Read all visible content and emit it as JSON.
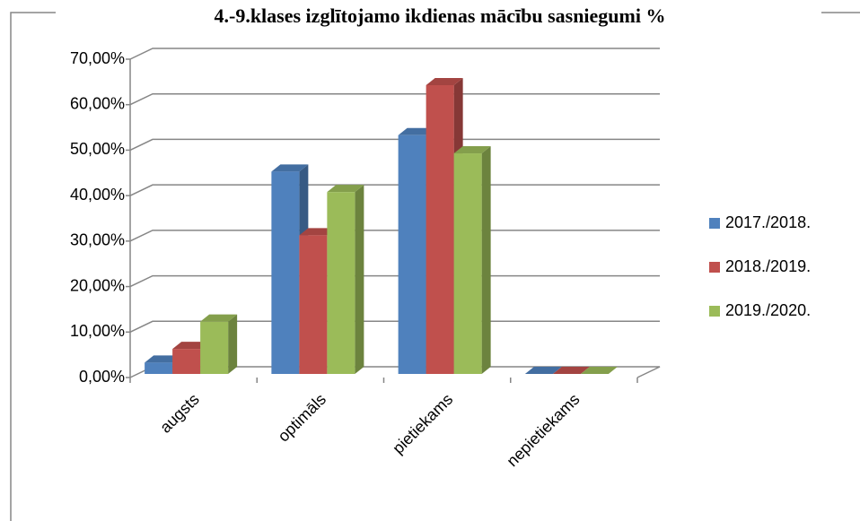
{
  "chart_data": {
    "type": "bar3d",
    "title": "4.-9.klases izglītojamo ikdienas mācību sasniegumi %",
    "categories": [
      "augsts",
      "optimāls",
      "pietiekams",
      "nepietiekams"
    ],
    "series": [
      {
        "name": "2017./2018.",
        "color": "#4f81bd",
        "values": [
          2.5,
          44.5,
          52.5,
          0
        ]
      },
      {
        "name": "2018./2019.",
        "color": "#c0504d",
        "values": [
          5.5,
          30.5,
          63.5,
          0
        ]
      },
      {
        "name": "2019./2020.",
        "color": "#9bbb59",
        "values": [
          11.5,
          40,
          48.5,
          0
        ]
      }
    ],
    "ylim": [
      0,
      70
    ],
    "yticks": [
      {
        "value": 0,
        "label": "0,00%"
      },
      {
        "value": 10,
        "label": "10,00%"
      },
      {
        "value": 20,
        "label": "20,00%"
      },
      {
        "value": 30,
        "label": "30,00%"
      },
      {
        "value": 40,
        "label": "40,00%"
      },
      {
        "value": 50,
        "label": "50,00%"
      },
      {
        "value": 60,
        "label": "60,00%"
      },
      {
        "value": 70,
        "label": "70,00%"
      }
    ],
    "grid": true,
    "legend": "right"
  }
}
